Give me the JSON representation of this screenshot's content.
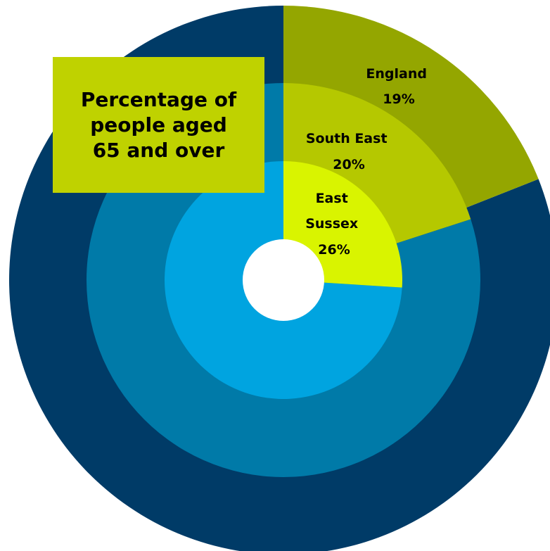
{
  "chart_data": {
    "type": "pie",
    "title": "Percentage of\npeople aged\n65 and over",
    "series": [
      {
        "name": "England",
        "label_lines": [
          "England",
          "19%"
        ],
        "value": 19
      },
      {
        "name": "South East",
        "label_lines": [
          "South East",
          "20%"
        ],
        "value": 20
      },
      {
        "name": "East Sussex",
        "label_lines": [
          "East",
          "Sussex",
          "26%"
        ],
        "value": 26
      }
    ],
    "unit": "%",
    "colors": {
      "England": {
        "highlight": "#94a600",
        "rest": "#003b67"
      },
      "South East": {
        "highlight": "#b5c800",
        "rest": "#007aa8"
      },
      "East Sussex": {
        "highlight": "#d9f400",
        "rest": "#00a4e0"
      },
      "title_box": "#bfd200"
    }
  }
}
